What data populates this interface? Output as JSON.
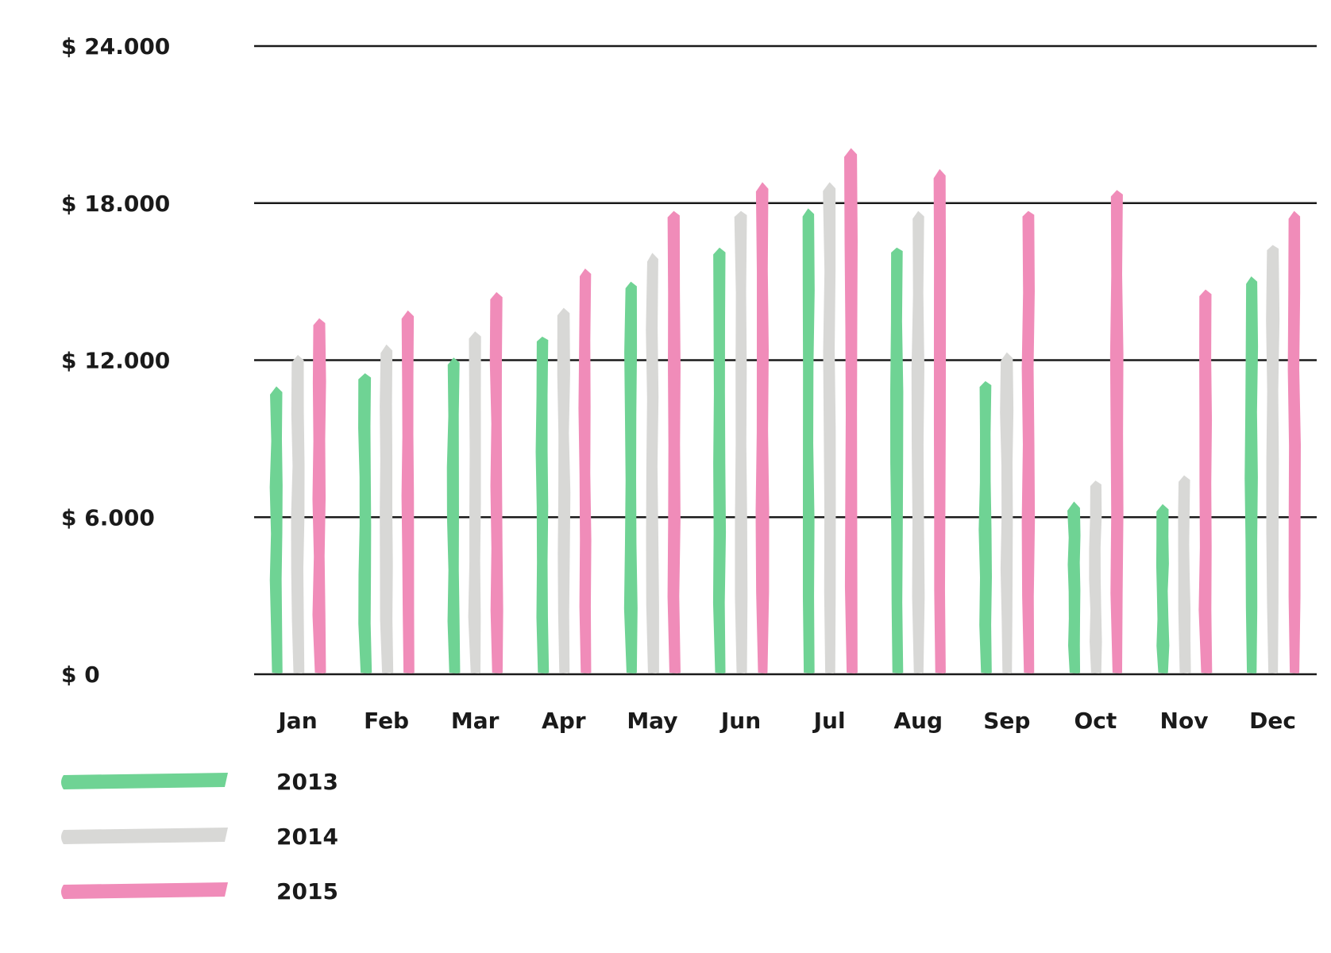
{
  "chart_data": {
    "type": "bar",
    "categories": [
      "Jan",
      "Feb",
      "Mar",
      "Apr",
      "May",
      "Jun",
      "Jul",
      "Aug",
      "Sep",
      "Oct",
      "Nov",
      "Dec"
    ],
    "series": [
      {
        "name": "2013",
        "color": "#6fd394",
        "values": [
          11000,
          11500,
          12100,
          12900,
          15000,
          16300,
          17800,
          16300,
          11200,
          6600,
          6500,
          15200
        ]
      },
      {
        "name": "2014",
        "color": "#d8d8d6",
        "values": [
          12200,
          12600,
          13100,
          14000,
          16100,
          17700,
          18800,
          17700,
          12300,
          7400,
          7600,
          16400
        ]
      },
      {
        "name": "2015",
        "color": "#f08cb9",
        "values": [
          13600,
          13900,
          14600,
          15500,
          17700,
          18800,
          20100,
          19300,
          17700,
          18500,
          14700,
          17700
        ]
      }
    ],
    "y_ticks": [
      "$ 0",
      "$ 6.000",
      "$ 12.000",
      "$ 18.000",
      "$ 24.000"
    ],
    "y_tick_values": [
      0,
      6000,
      12000,
      18000,
      24000
    ],
    "ylim": [
      0,
      24000
    ],
    "grid": true,
    "legend": "bottom-left"
  }
}
